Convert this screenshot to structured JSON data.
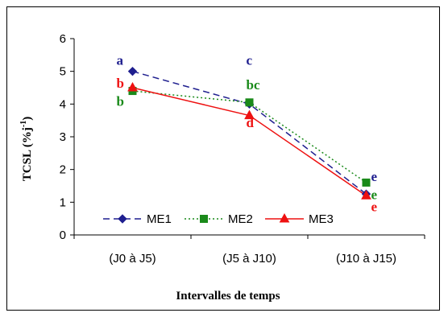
{
  "chart_data": {
    "type": "line",
    "categories": [
      "(J0 à J5)",
      "(J5 à J10)",
      "(J10 à J15)"
    ],
    "xlabel": "Intervalles de temps",
    "ylabel_main": "TCSL (%j",
    "ylabel_sup": "-1",
    "ylabel_close": ")",
    "ylim": [
      0,
      6
    ],
    "yticks": [
      "0",
      "1",
      "2",
      "3",
      "4",
      "5",
      "6"
    ],
    "grid": false,
    "legend_position": "bottom-inside",
    "series": [
      {
        "name": "ME1",
        "values": [
          5.0,
          4.0,
          1.25
        ],
        "color": "#1f1f8f",
        "marker": "diamond",
        "dash": "8,5"
      },
      {
        "name": "ME2",
        "values": [
          4.4,
          4.05,
          1.6
        ],
        "color": "#1a8a1a",
        "marker": "square",
        "dash": "2,3"
      },
      {
        "name": "ME3",
        "values": [
          4.5,
          3.65,
          1.2
        ],
        "color": "#ee1111",
        "marker": "triangle",
        "dash": ""
      }
    ],
    "annotations": [
      {
        "text": "a",
        "color": "#1f1f8f",
        "cat": 0,
        "y": 5.2
      },
      {
        "text": "b",
        "color": "#ee1111",
        "cat": 0,
        "y": 4.5
      },
      {
        "text": "b",
        "color": "#1a8a1a",
        "cat": 0,
        "y": 3.95
      },
      {
        "text": "c",
        "color": "#1f1f8f",
        "cat": 1,
        "y": 5.2
      },
      {
        "text": "bc",
        "color": "#1a8a1a",
        "cat": 1,
        "y": 4.45
      },
      {
        "text": "d",
        "color": "#ee1111",
        "cat": 1,
        "y": 3.3
      },
      {
        "text": "e",
        "color": "#1f1f8f",
        "cat": 2,
        "y": 1.65
      },
      {
        "text": "e",
        "color": "#1a8a1a",
        "cat": 2,
        "y": 1.1
      },
      {
        "text": "e",
        "color": "#ee1111",
        "cat": 2,
        "y": 0.72
      }
    ]
  }
}
